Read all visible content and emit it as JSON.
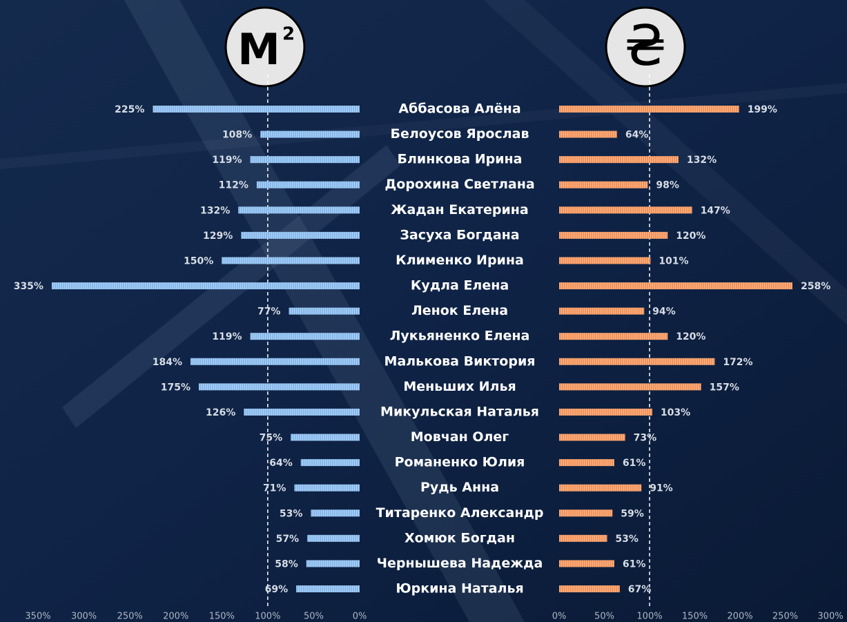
{
  "symbols": {
    "area": {
      "base": "M",
      "exponent": "2"
    },
    "currency": "₴"
  },
  "chart_data": {
    "type": "bar",
    "orientation": "horizontal",
    "categories": [
      "Аббасова Алёна",
      "Белоусов Ярослав",
      "Блинкова Ирина",
      "Дорохина Светлана",
      "Жадан Екатерина",
      "Засуха Богдана",
      "Клименко Ирина",
      "Кудла Елена",
      "Ленок Елена",
      "Лукьяненко Елена",
      "Малькова Виктория",
      "Меньших Илья",
      "Микульская Наталья",
      "Мовчан Олег",
      "Романенко Юлия",
      "Рудь Анна",
      "Титаренко Александр",
      "Хомюк Богдан",
      "Чернышева Надежда",
      "Юркина Наталья"
    ],
    "series": [
      {
        "color": "#86b9ec",
        "direction": "reversed",
        "reference": 100,
        "values": [
          225,
          108,
          119,
          112,
          132,
          129,
          150,
          335,
          77,
          119,
          184,
          175,
          126,
          75,
          64,
          71,
          53,
          57,
          58,
          69
        ],
        "value_labels": [
          "225%",
          "108%",
          "119%",
          "112%",
          "132%",
          "129%",
          "150%",
          "335%",
          "77%",
          "119%",
          "184%",
          "175%",
          "126%",
          "75%",
          "64%",
          "71%",
          "53%",
          "57%",
          "58%",
          "69%"
        ],
        "xlim": [
          0,
          350
        ],
        "xticks": [
          {
            "value": 0,
            "label": "0%"
          },
          {
            "value": 50,
            "label": "50%"
          },
          {
            "value": 100,
            "label": "100%"
          },
          {
            "value": 150,
            "label": "150%"
          },
          {
            "value": 200,
            "label": "200%"
          },
          {
            "value": 250,
            "label": "250%"
          },
          {
            "value": 300,
            "label": "300%"
          },
          {
            "value": 350,
            "label": "350%"
          }
        ]
      },
      {
        "color": "#f39258",
        "direction": "normal",
        "reference": 100,
        "values": [
          199,
          64,
          132,
          98,
          147,
          120,
          101,
          258,
          94,
          120,
          172,
          157,
          103,
          73,
          61,
          91,
          59,
          53,
          61,
          67
        ],
        "value_labels": [
          "199%",
          "64%",
          "132%",
          "98%",
          "147%",
          "120%",
          "101%",
          "258%",
          "94%",
          "120%",
          "172%",
          "157%",
          "103%",
          "73%",
          "61%",
          "91%",
          "59%",
          "53%",
          "61%",
          "67%"
        ],
        "xlim": [
          0,
          300
        ],
        "xticks": [
          {
            "value": 0,
            "label": "0%"
          },
          {
            "value": 50,
            "label": "50%"
          },
          {
            "value": 100,
            "label": "100%"
          },
          {
            "value": 150,
            "label": "150%"
          },
          {
            "value": 200,
            "label": "200%"
          },
          {
            "value": 250,
            "label": "250%"
          },
          {
            "value": 300,
            "label": "300%"
          }
        ]
      }
    ]
  }
}
